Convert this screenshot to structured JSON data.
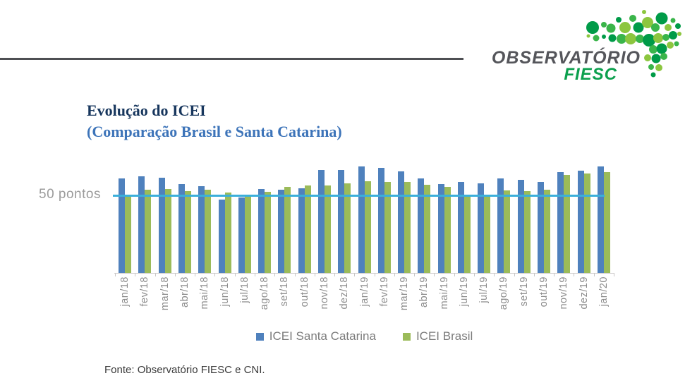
{
  "logo": {
    "brand_line1": "OBSERVATÓRIO",
    "brand_line2": "FIESC"
  },
  "title": {
    "line1": "Evolução do ICEI",
    "line2": "(Comparação Brasil e Santa Catarina)"
  },
  "footer": {
    "source": "Fonte: Observatório FIESC e CNI."
  },
  "colors": {
    "rule": "#4E4F53",
    "brand_text": "#55565B",
    "brand_green": "#0CA04E",
    "title_navy": "#17365D",
    "title_blue": "#3D74B9",
    "axis_text": "#8C8C8C",
    "sc_bar": "#4F81BD",
    "br_bar": "#9BBB59",
    "reference_line": "#3BAFDA"
  },
  "chart_data": {
    "type": "bar",
    "title": "Evolução do ICEI (Comparação Brasil e Santa Catarina)",
    "categories": [
      "jan/18",
      "fev/18",
      "mar/18",
      "abr/18",
      "mai/18",
      "jun/18",
      "jul/18",
      "ago/18",
      "set/18",
      "out/18",
      "nov/18",
      "dez/18",
      "jan/19",
      "fev/19",
      "mar/19",
      "abr/19",
      "mai/19",
      "jun/19",
      "jul/19",
      "ago/19",
      "set/19",
      "out/19",
      "nov/19",
      "dez/19",
      "jan/20"
    ],
    "series": [
      {
        "name": "ICEI Santa Catarina",
        "color": "#4F81BD",
        "values": [
          61.0,
          62.4,
          61.6,
          57.5,
          56.0,
          47.6,
          48.7,
          54.2,
          54.0,
          54.8,
          66.7,
          66.8,
          69.1,
          68.0,
          65.6,
          61.0,
          57.4,
          58.7,
          58.2,
          61.4,
          60.5,
          59.1,
          65.5,
          66.2,
          69.1
        ]
      },
      {
        "name": "ICEI Brasil",
        "color": "#9BBB59",
        "values": [
          49.4,
          53.7,
          54.5,
          53.2,
          53.9,
          52.2,
          49.6,
          52.6,
          55.8,
          56.5,
          56.8,
          58.1,
          59.2,
          59.1,
          59.1,
          57.2,
          55.7,
          50.1,
          49.6,
          53.6,
          53.1,
          53.9,
          63.5,
          64.2,
          65.1
        ]
      }
    ],
    "reference_line": {
      "value": 50,
      "label": "50 pontos",
      "color": "#3BAFDA"
    },
    "ylim": [
      0,
      72
    ],
    "y_axis_visible": false,
    "x_labels_rotated": true,
    "grid": false,
    "legend_position": "bottom"
  }
}
